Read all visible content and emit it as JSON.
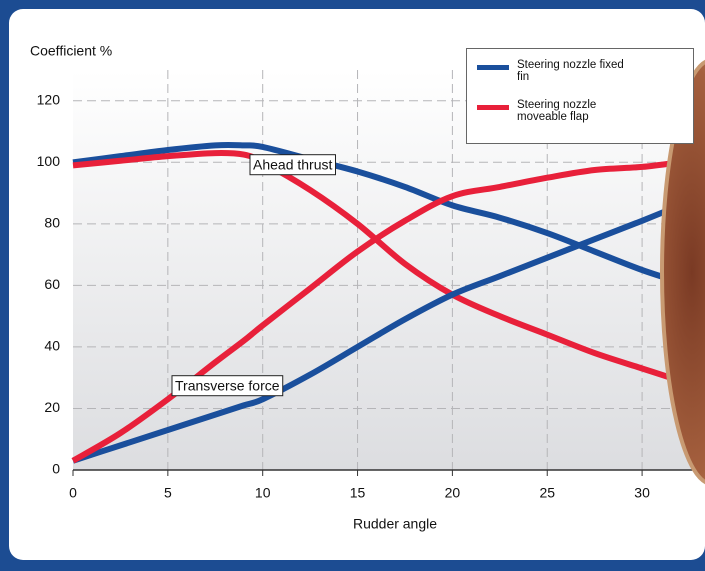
{
  "chart_data": {
    "type": "line",
    "ylabel": "Coefficient %",
    "xlabel": "Rudder angle",
    "x": [
      0,
      2.5,
      5,
      7.5,
      9,
      10,
      12.5,
      15,
      17.5,
      20,
      22.5,
      25,
      27.5,
      30,
      32
    ],
    "series": [
      {
        "name": "Steering nozzle fixed fin",
        "color": "#1a4f9c",
        "values": [
          100,
          102,
          104,
          105.5,
          105.5,
          105,
          101,
          97,
          92,
          86,
          82,
          77,
          71,
          65,
          61
        ]
      },
      {
        "name": "Steering nozzle moveable flap",
        "color": "#e8203a",
        "values": [
          99,
          100.5,
          102,
          103,
          102.5,
          100,
          91,
          80,
          67,
          57,
          50,
          44,
          38,
          33,
          29
        ]
      },
      {
        "color": "#1a4f9c",
        "values": [
          3,
          8,
          13,
          18,
          21,
          23,
          31,
          40,
          49,
          57,
          63,
          69,
          75,
          81,
          86
        ]
      },
      {
        "color": "#e8203a",
        "values": [
          3,
          12,
          23,
          35,
          42,
          47,
          59,
          71,
          81,
          89,
          92,
          95,
          97.5,
          98.5,
          100
        ]
      }
    ],
    "annotations": [
      "Ahead thrust",
      "Transverse force"
    ],
    "xlim": [
      0,
      33
    ],
    "ylim": [
      0,
      130
    ],
    "xticks": [
      0,
      5,
      10,
      15,
      20,
      25,
      30
    ],
    "yticks": [
      0,
      20,
      40,
      60,
      80,
      100,
      120
    ],
    "grid": true
  }
}
